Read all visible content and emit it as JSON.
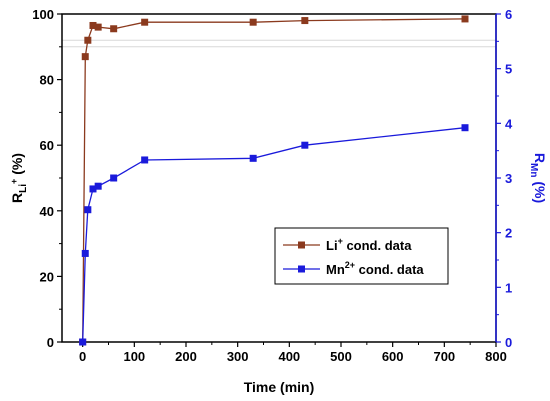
{
  "chart_data": {
    "type": "line",
    "xlabel": "Time (min)",
    "x_ticks": [
      "0",
      "100",
      "200",
      "300",
      "400",
      "500",
      "600",
      "700",
      "800"
    ],
    "xlim": [
      -40,
      800
    ],
    "left_axis": {
      "label_main": "R",
      "label_sub": "Li",
      "label_sup": "+",
      "label_unit": " (%)",
      "ylim": [
        0,
        100
      ],
      "ticks": [
        "0",
        "20",
        "40",
        "60",
        "80",
        "100"
      ]
    },
    "right_axis": {
      "label_main": "R",
      "label_sub": "Mn",
      "label_unit": " (%)",
      "ylim": [
        0,
        6
      ],
      "ticks": [
        "0",
        "1",
        "2",
        "3",
        "4",
        "5",
        "6"
      ],
      "color": "#1a1adb"
    },
    "series": [
      {
        "name_main": "Li",
        "name_sup": "+",
        "name_rest": " cond. data",
        "axis": "left",
        "color": "#8b3a1e",
        "x": [
          0,
          5,
          10,
          20,
          30,
          60,
          120,
          330,
          430,
          740
        ],
        "y": [
          0,
          87,
          92,
          96.5,
          96,
          95.5,
          97.5,
          97.5,
          98,
          98.5
        ]
      },
      {
        "name_main": "Mn",
        "name_sup": "2+",
        "name_rest": " cond. data",
        "axis": "right",
        "color": "#1a1adb",
        "x": [
          0,
          5,
          10,
          20,
          30,
          60,
          120,
          330,
          430,
          740
        ],
        "y": [
          0,
          1.62,
          2.42,
          2.8,
          2.85,
          3.0,
          3.33,
          3.36,
          3.6,
          3.92
        ]
      }
    ]
  }
}
